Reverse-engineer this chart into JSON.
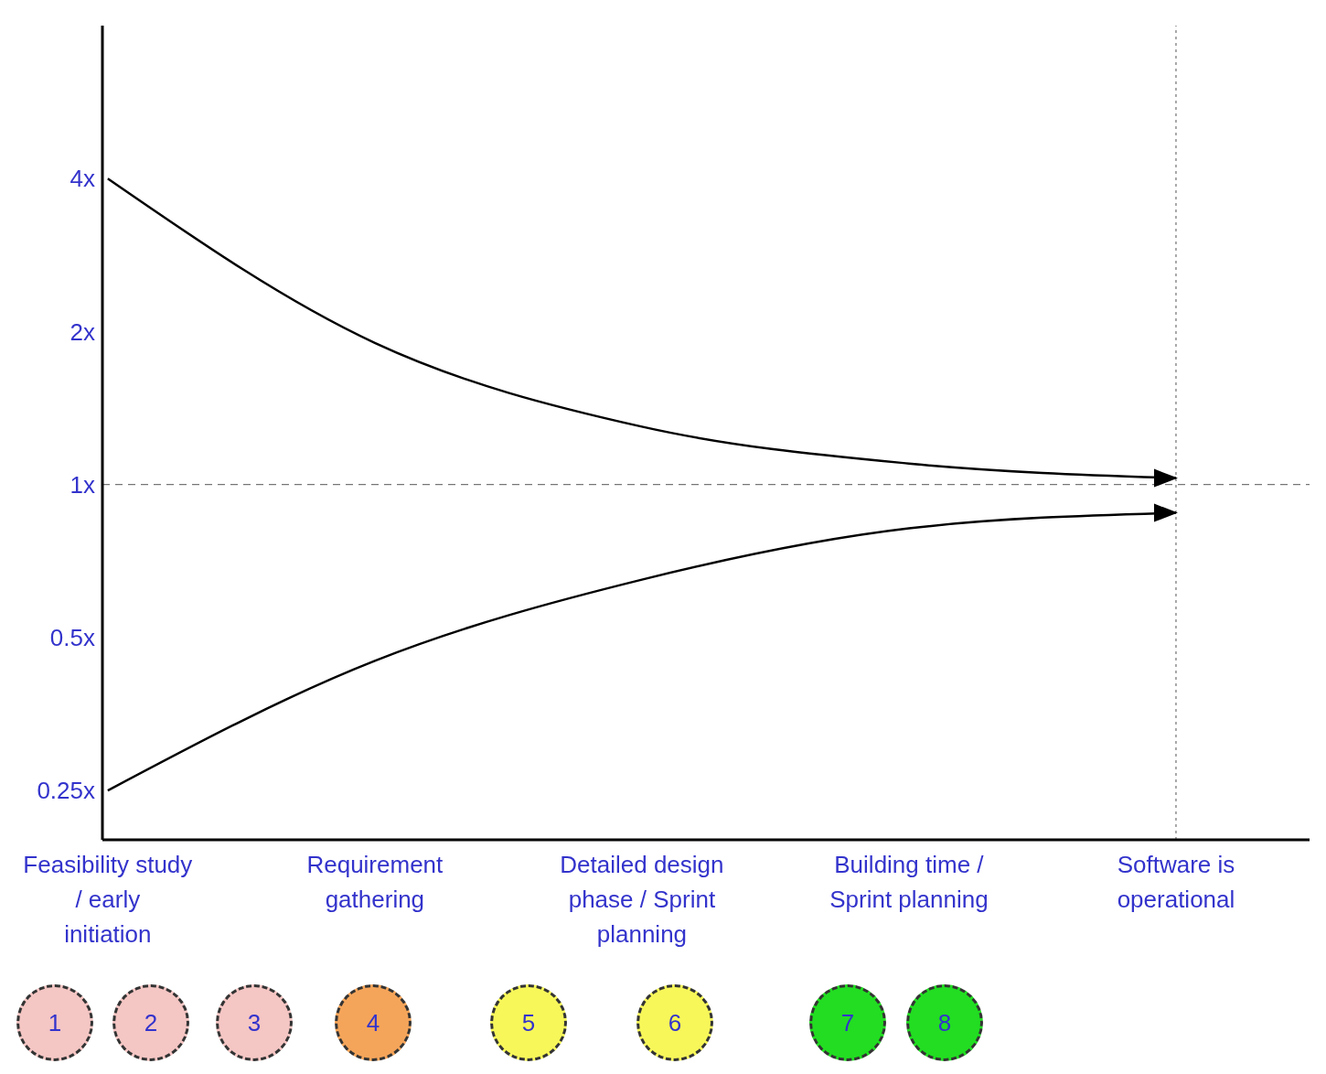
{
  "chart_data": {
    "type": "line",
    "log": "y",
    "categories": [
      "Feasibility study / early initiation",
      "Requirement gathering",
      "Detailed design phase / Sprint planning",
      "Building time / Sprint planning",
      "Software is operational"
    ],
    "series": [
      {
        "color": "#000000",
        "values": [
          4,
          1.9,
          1.3,
          1.1,
          1.03
        ]
      },
      {
        "color": "#000000",
        "values": [
          0.25,
          0.45,
          0.65,
          0.82,
          0.88
        ]
      }
    ],
    "ylim": [
      0.2,
      8
    ],
    "yticks": [
      {
        "value": 0.25,
        "label": "0.25x"
      },
      {
        "value": 0.5,
        "label": "0.5x"
      },
      {
        "value": 1,
        "label": "1x"
      },
      {
        "value": 2,
        "label": "2x"
      },
      {
        "value": 4,
        "label": "4x"
      }
    ],
    "ref_lines": [
      {
        "axis": "y",
        "value": 1,
        "line_style": "dashed"
      },
      {
        "axis": "x",
        "value": "Software is operational",
        "line_style": "dotted"
      }
    ],
    "annotations": [
      "1",
      "2",
      "3",
      "4",
      "5",
      "6",
      "7",
      "8"
    ],
    "grid": false,
    "legend": false,
    "marker": "none",
    "line_style": "solid"
  }
}
